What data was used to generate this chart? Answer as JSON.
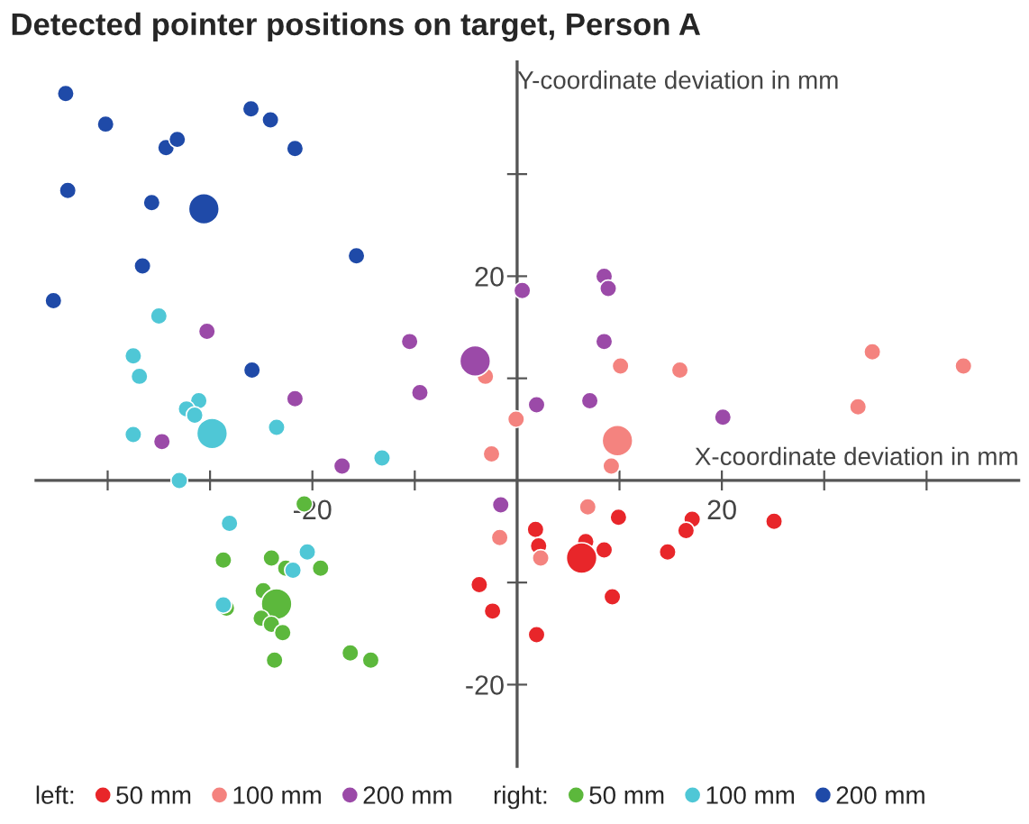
{
  "chart_data": {
    "type": "bubble",
    "title": "Detected pointer positions on target, Person A",
    "xlabel": "X-coordinate deviation in mm",
    "ylabel": "Y-coordinate deviation in mm",
    "annotations": [
      "left:",
      "right:"
    ],
    "xlim": [
      -47,
      49
    ],
    "ylim": [
      -28,
      41
    ],
    "xticks": [
      {
        "value": -40,
        "label": null
      },
      {
        "value": -30,
        "label": null
      },
      {
        "value": -20,
        "label": "-20"
      },
      {
        "value": -10,
        "label": null
      },
      {
        "value": 10,
        "label": null
      },
      {
        "value": 20,
        "label": "20"
      },
      {
        "value": 30,
        "label": null
      },
      {
        "value": 40,
        "label": null
      }
    ],
    "yticks": [
      {
        "value": -20,
        "label": "-20"
      },
      {
        "value": -10,
        "label": null
      },
      {
        "value": 10,
        "label": null
      },
      {
        "value": 20,
        "label": "20"
      },
      {
        "value": 30,
        "label": null
      }
    ],
    "grid": false,
    "legend": "bottom",
    "marker": "circle",
    "series": [
      {
        "name": "50 mm",
        "color": "#e8262a",
        "x": [
          1.8,
          9.9,
          17.1,
          25.1,
          16.5,
          2.1,
          6.7,
          8.5,
          6.3,
          14.7,
          -3.7,
          9.3,
          -2.4,
          1.9
        ],
        "values": [
          -4.8,
          -3.6,
          -3.8,
          -4.0,
          -4.9,
          -6.4,
          -6.0,
          -6.8,
          -7.6,
          -7.0,
          -10.2,
          -11.4,
          -12.8,
          -15.1
        ],
        "sizes": [
          0.3,
          0.3,
          0.3,
          0.3,
          0.3,
          0.3,
          0.3,
          0.3,
          1,
          0.3,
          0.3,
          0.3,
          0.3,
          0.3
        ]
      },
      {
        "name": "100 mm",
        "color": "#f4837f",
        "x": [
          -3.1,
          -0.1,
          -2.5,
          10.1,
          15.9,
          34.7,
          43.6,
          33.3,
          9.8,
          9.2,
          6.9,
          -1.7,
          2.3
        ],
        "values": [
          10.2,
          6.0,
          2.6,
          11.2,
          10.8,
          12.6,
          11.2,
          7.2,
          3.9,
          1.4,
          -2.6,
          -5.6,
          -7.6
        ],
        "sizes": [
          0.3,
          0.3,
          0.3,
          0.3,
          0.3,
          0.3,
          0.3,
          0.3,
          1,
          0.3,
          0.3,
          0.3,
          0.3
        ]
      },
      {
        "name": "200 mm",
        "color": "#9b4aa8",
        "x": [
          -30.3,
          -10.5,
          -4.1,
          -9.5,
          -21.7,
          -34.7,
          -17.1,
          0.5,
          8.5,
          8.9,
          8.5,
          1.9,
          7.1,
          20.1,
          -1.6
        ],
        "values": [
          14.6,
          13.6,
          11.7,
          8.6,
          8.0,
          3.8,
          1.4,
          18.6,
          20.0,
          18.8,
          13.6,
          7.4,
          7.8,
          6.2,
          -2.4
        ],
        "sizes": [
          0.3,
          0.3,
          1,
          0.3,
          0.3,
          0.3,
          0.3,
          0.3,
          0.3,
          0.3,
          0.3,
          0.3,
          0.3,
          0.3,
          0.3
        ]
      },
      {
        "name": "50 mm",
        "color": "#5cb83c",
        "x": [
          -20.8,
          -28.7,
          -24.0,
          -22.6,
          -19.2,
          -24.8,
          -23.5,
          -28.4,
          -25.0,
          -24.0,
          -22.9,
          -23.7,
          -16.3,
          -14.3
        ],
        "values": [
          -2.3,
          -7.8,
          -7.6,
          -8.6,
          -8.6,
          -10.8,
          -12.1,
          -12.5,
          -13.5,
          -14.1,
          -14.9,
          -17.6,
          -16.9,
          -17.6
        ],
        "sizes": [
          0.3,
          0.3,
          0.3,
          0.3,
          0.3,
          0.3,
          1,
          0.3,
          0.3,
          0.3,
          0.3,
          0.3,
          0.3,
          0.3
        ]
      },
      {
        "name": "100 mm",
        "color": "#4fc7d6",
        "x": [
          -35.0,
          -37.5,
          -36.9,
          -31.1,
          -32.3,
          -31.5,
          -29.8,
          -37.5,
          -23.5,
          -13.2,
          -33.0,
          -28.1,
          -20.5,
          -21.9,
          -28.7
        ],
        "values": [
          16.1,
          12.2,
          10.2,
          7.8,
          7.0,
          6.4,
          4.6,
          4.5,
          5.2,
          2.2,
          0.0,
          -4.2,
          -7.0,
          -8.8,
          -12.2
        ],
        "sizes": [
          0.3,
          0.3,
          0.3,
          0.3,
          0.3,
          0.3,
          1,
          0.3,
          0.3,
          0.3,
          0.3,
          0.3,
          0.3,
          0.3,
          0.3
        ]
      },
      {
        "name": "200 mm",
        "color": "#1f4aa8",
        "x": [
          -44.1,
          -40.2,
          -34.3,
          -33.2,
          -26.0,
          -24.1,
          -21.7,
          -43.9,
          -35.7,
          -30.6,
          -15.7,
          -36.6,
          -45.3,
          -25.9
        ],
        "values": [
          37.9,
          34.9,
          32.6,
          33.4,
          36.4,
          35.3,
          32.5,
          28.4,
          27.2,
          26.6,
          22.0,
          21.0,
          17.6,
          10.8
        ],
        "sizes": [
          0.3,
          0.3,
          0.3,
          0.3,
          0.3,
          0.3,
          0.3,
          0.3,
          0.3,
          1,
          0.3,
          0.3,
          0.3,
          0.3
        ]
      }
    ]
  }
}
